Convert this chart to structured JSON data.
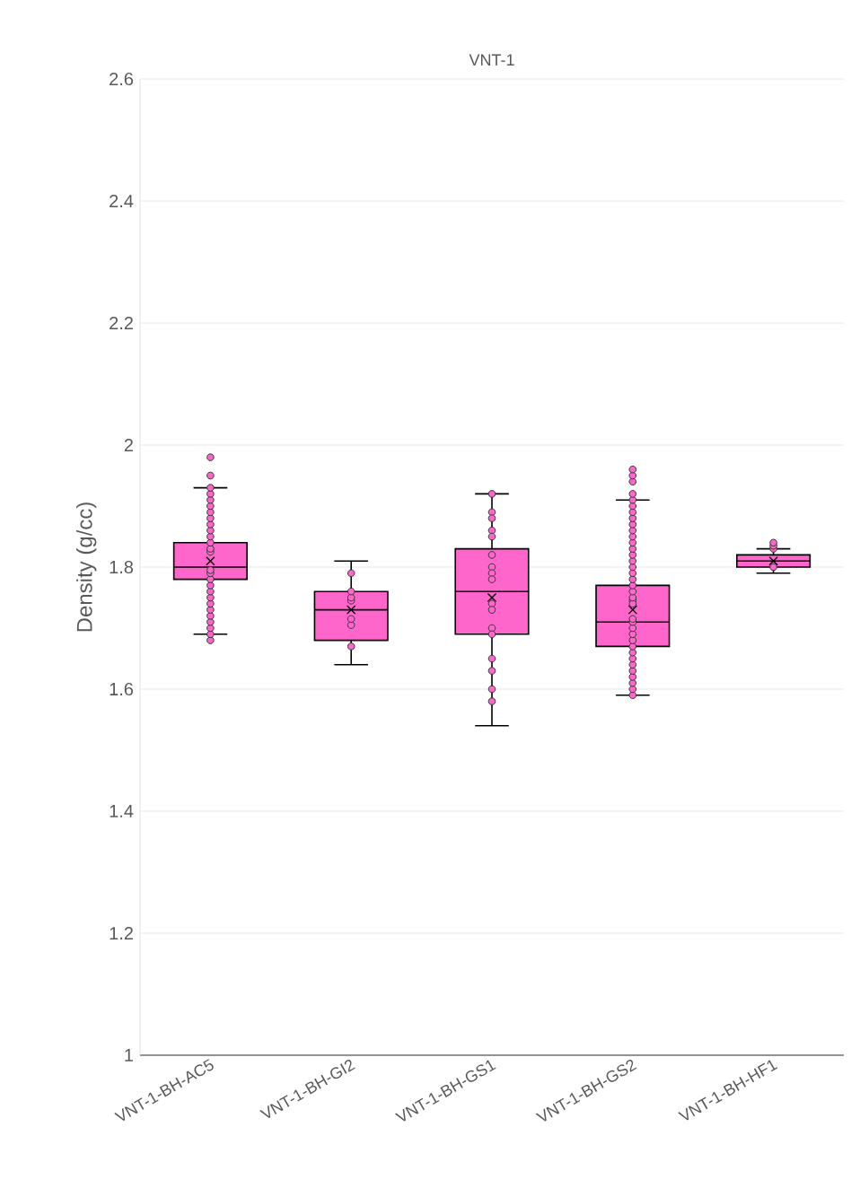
{
  "chart_data": {
    "type": "box",
    "title": "VNT-1",
    "ylabel": "Density (g/cc)",
    "categories": [
      "VNT-1-BH-AC5",
      "VNT-1-BH-GI2",
      "VNT-1-BH-GS1",
      "VNT-1-BH-GS2",
      "VNT-1-BH-HF1"
    ],
    "ylim": [
      1,
      2.6
    ],
    "yticks": [
      1,
      1.2,
      1.4,
      1.6,
      1.8,
      2,
      2.2,
      2.4,
      2.6
    ],
    "grid": "y",
    "marker": "circle",
    "series": [
      {
        "type": "box",
        "color": "#ff66cc",
        "boxes": [
          {
            "low": 1.69,
            "q1": 1.78,
            "median": 1.8,
            "q3": 1.84,
            "high": 1.93,
            "mean": 1.81
          },
          {
            "low": 1.64,
            "q1": 1.68,
            "median": 1.73,
            "q3": 1.76,
            "high": 1.81,
            "mean": 1.73
          },
          {
            "low": 1.54,
            "q1": 1.69,
            "median": 1.76,
            "q3": 1.83,
            "high": 1.92,
            "mean": 1.75
          },
          {
            "low": 1.59,
            "q1": 1.67,
            "median": 1.71,
            "q3": 1.77,
            "high": 1.91,
            "mean": 1.73
          },
          {
            "low": 1.79,
            "q1": 1.8,
            "median": 1.81,
            "q3": 1.82,
            "high": 1.83,
            "mean": 1.81
          }
        ]
      },
      {
        "type": "scatter",
        "color": "#ff66cc",
        "x": [
          "VNT-1-BH-AC5",
          "VNT-1-BH-AC5",
          "VNT-1-BH-AC5",
          "VNT-1-BH-AC5",
          "VNT-1-BH-AC5",
          "VNT-1-BH-AC5",
          "VNT-1-BH-AC5",
          "VNT-1-BH-AC5",
          "VNT-1-BH-AC5",
          "VNT-1-BH-AC5",
          "VNT-1-BH-AC5",
          "VNT-1-BH-AC5",
          "VNT-1-BH-AC5",
          "VNT-1-BH-AC5",
          "VNT-1-BH-AC5",
          "VNT-1-BH-AC5",
          "VNT-1-BH-AC5",
          "VNT-1-BH-AC5",
          "VNT-1-BH-AC5",
          "VNT-1-BH-AC5",
          "VNT-1-BH-AC5",
          "VNT-1-BH-AC5",
          "VNT-1-BH-AC5",
          "VNT-1-BH-AC5",
          "VNT-1-BH-AC5",
          "VNT-1-BH-AC5",
          "VNT-1-BH-AC5",
          "VNT-1-BH-GI2",
          "VNT-1-BH-GI2",
          "VNT-1-BH-GI2",
          "VNT-1-BH-GI2",
          "VNT-1-BH-GI2",
          "VNT-1-BH-GI2",
          "VNT-1-BH-GI2",
          "VNT-1-BH-GS1",
          "VNT-1-BH-GS1",
          "VNT-1-BH-GS1",
          "VNT-1-BH-GS1",
          "VNT-1-BH-GS1",
          "VNT-1-BH-GS1",
          "VNT-1-BH-GS1",
          "VNT-1-BH-GS1",
          "VNT-1-BH-GS1",
          "VNT-1-BH-GS1",
          "VNT-1-BH-GS1",
          "VNT-1-BH-GS1",
          "VNT-1-BH-GS1",
          "VNT-1-BH-GS1",
          "VNT-1-BH-GS1",
          "VNT-1-BH-GS1",
          "VNT-1-BH-GS1",
          "VNT-1-BH-GS2",
          "VNT-1-BH-GS2",
          "VNT-1-BH-GS2",
          "VNT-1-BH-GS2",
          "VNT-1-BH-GS2",
          "VNT-1-BH-GS2",
          "VNT-1-BH-GS2",
          "VNT-1-BH-GS2",
          "VNT-1-BH-GS2",
          "VNT-1-BH-GS2",
          "VNT-1-BH-GS2",
          "VNT-1-BH-GS2",
          "VNT-1-BH-GS2",
          "VNT-1-BH-GS2",
          "VNT-1-BH-GS2",
          "VNT-1-BH-GS2",
          "VNT-1-BH-GS2",
          "VNT-1-BH-GS2",
          "VNT-1-BH-GS2",
          "VNT-1-BH-GS2",
          "VNT-1-BH-GS2",
          "VNT-1-BH-GS2",
          "VNT-1-BH-GS2",
          "VNT-1-BH-GS2",
          "VNT-1-BH-GS2",
          "VNT-1-BH-GS2",
          "VNT-1-BH-GS2",
          "VNT-1-BH-GS2",
          "VNT-1-BH-GS2",
          "VNT-1-BH-GS2",
          "VNT-1-BH-GS2",
          "VNT-1-BH-GS2",
          "VNT-1-BH-GS2",
          "VNT-1-BH-GS2",
          "VNT-1-BH-GS2",
          "VNT-1-BH-GS2",
          "VNT-1-BH-GS2",
          "VNT-1-BH-HF1",
          "VNT-1-BH-HF1",
          "VNT-1-BH-HF1",
          "VNT-1-BH-HF1"
        ],
        "values": [
          1.68,
          1.69,
          1.7,
          1.71,
          1.72,
          1.73,
          1.74,
          1.75,
          1.76,
          1.77,
          1.78,
          1.79,
          1.795,
          1.825,
          1.83,
          1.84,
          1.85,
          1.86,
          1.87,
          1.88,
          1.89,
          1.9,
          1.91,
          1.92,
          1.93,
          1.95,
          1.98,
          1.67,
          1.705,
          1.715,
          1.745,
          1.75,
          1.76,
          1.79,
          1.92,
          1.89,
          1.88,
          1.86,
          1.85,
          1.82,
          1.8,
          1.79,
          1.78,
          1.74,
          1.73,
          1.7,
          1.69,
          1.65,
          1.63,
          1.6,
          1.58,
          1.59,
          1.6,
          1.61,
          1.62,
          1.63,
          1.64,
          1.65,
          1.66,
          1.67,
          1.68,
          1.69,
          1.7,
          1.71,
          1.715,
          1.745,
          1.74,
          1.75,
          1.76,
          1.77,
          1.78,
          1.79,
          1.8,
          1.81,
          1.82,
          1.83,
          1.84,
          1.85,
          1.86,
          1.87,
          1.88,
          1.89,
          1.9,
          1.91,
          1.92,
          1.94,
          1.95,
          1.96,
          1.8,
          1.83,
          1.835,
          1.84
        ]
      }
    ]
  }
}
